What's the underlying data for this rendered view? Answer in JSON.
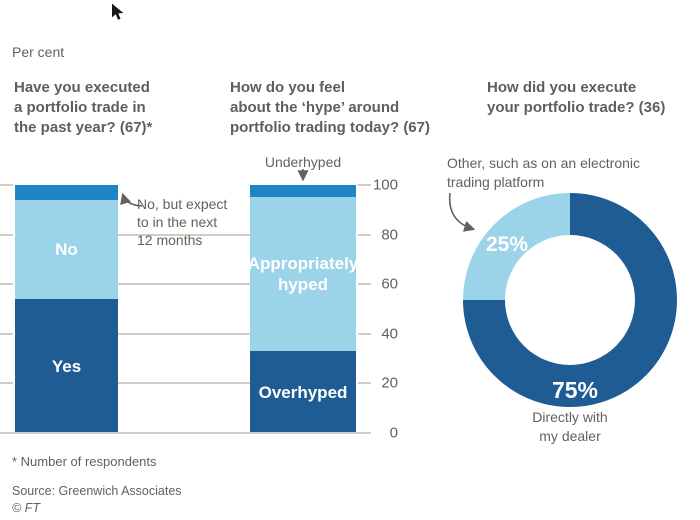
{
  "unit_label": "Per cent",
  "colors": {
    "dark_blue": "#1f5c94",
    "light_blue": "#9bd4e9",
    "mid_blue": "#1e86c4",
    "text_gray": "#66605c",
    "gridline": "#d5cbc1"
  },
  "chart_axis": {
    "ticks": [
      100,
      80,
      60,
      40,
      20,
      0
    ],
    "unit": "Per cent",
    "ylim": [
      0,
      100
    ],
    "grid": true
  },
  "chart_data": [
    {
      "type": "bar",
      "stacked": true,
      "title": "Have you executed\na portfolio trade in\nthe past year? (67)*",
      "ylim": [
        0,
        100
      ],
      "series": [
        {
          "name": "Yes",
          "value": 54,
          "color": "dark_blue",
          "bar_label": "Yes"
        },
        {
          "name": "No",
          "value": 40,
          "color": "light_blue",
          "bar_label": "No"
        },
        {
          "name": "No, but expect to in the next 12 months",
          "value": 6,
          "color": "mid_blue"
        }
      ],
      "annotation": "No, but expect\nto in the next\n12 months"
    },
    {
      "type": "bar",
      "stacked": true,
      "title": "How do you feel\nabout the ‘hype’ around\nportfolio trading today? (67)",
      "ylim": [
        0,
        100
      ],
      "series": [
        {
          "name": "Overhyped",
          "value": 33,
          "color": "dark_blue",
          "bar_label": "Overhyped"
        },
        {
          "name": "Appropriately hyped",
          "value": 62,
          "color": "light_blue",
          "bar_label": "Appropriately\nhyped"
        },
        {
          "name": "Underhyped",
          "value": 5,
          "color": "mid_blue"
        }
      ],
      "annotation": "Underhyped"
    },
    {
      "type": "donut",
      "title": "How did you execute\nyour portfolio trade? (36)",
      "slices": [
        {
          "name": "Directly with my dealer",
          "value": 75,
          "color": "dark_blue",
          "label": "75%"
        },
        {
          "name": "Other, such as on an electronic trading platform",
          "value": 25,
          "color": "light_blue",
          "label": "25%"
        }
      ],
      "caption": "Directly with\nmy dealer",
      "annotation": "Other, such as on an electronic\ntrading platform"
    }
  ],
  "footer": {
    "note": "* Number of respondents",
    "source": "Source: Greenwich Associates",
    "copyright": "© FT"
  }
}
